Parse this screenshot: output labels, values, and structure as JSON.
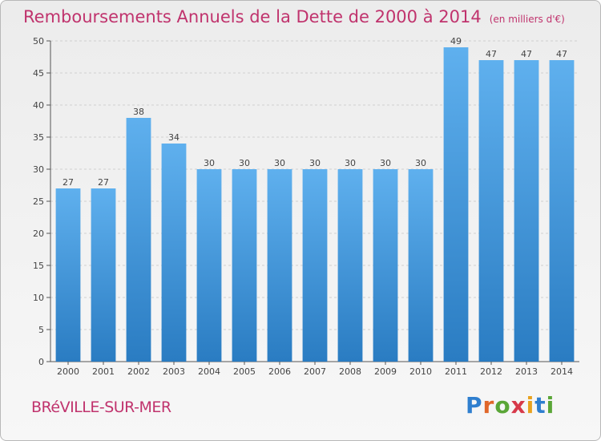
{
  "header": {
    "title": "Remboursements Annuels de la Dette de 2000 à 2014",
    "unit": "(en milliers d'€)"
  },
  "footer": {
    "commune": "BRéVILLE-SUR-MER",
    "logo_letters": [
      "P",
      "r",
      "o",
      "x",
      "i",
      "t",
      "i"
    ]
  },
  "colors": {
    "title": "#c0336d",
    "bar_top": "#5fb0ee",
    "bar_bottom": "#2a7cc2",
    "axis": "#555555",
    "grid": "#d0d0d0"
  },
  "chart_data": {
    "type": "bar",
    "title": "Remboursements Annuels de la Dette de 2000 à 2014",
    "xlabel": "",
    "ylabel": "",
    "categories": [
      "2000",
      "2001",
      "2002",
      "2003",
      "2004",
      "2005",
      "2006",
      "2007",
      "2008",
      "2009",
      "2010",
      "2011",
      "2012",
      "2013",
      "2014"
    ],
    "values": [
      27,
      27,
      38,
      34,
      30,
      30,
      30,
      30,
      30,
      30,
      30,
      49,
      47,
      47,
      47
    ],
    "ylim": [
      0,
      50
    ],
    "yticks": [
      0,
      5,
      10,
      15,
      20,
      25,
      30,
      35,
      40,
      45,
      50
    ],
    "grid": true,
    "data_labels": true
  }
}
